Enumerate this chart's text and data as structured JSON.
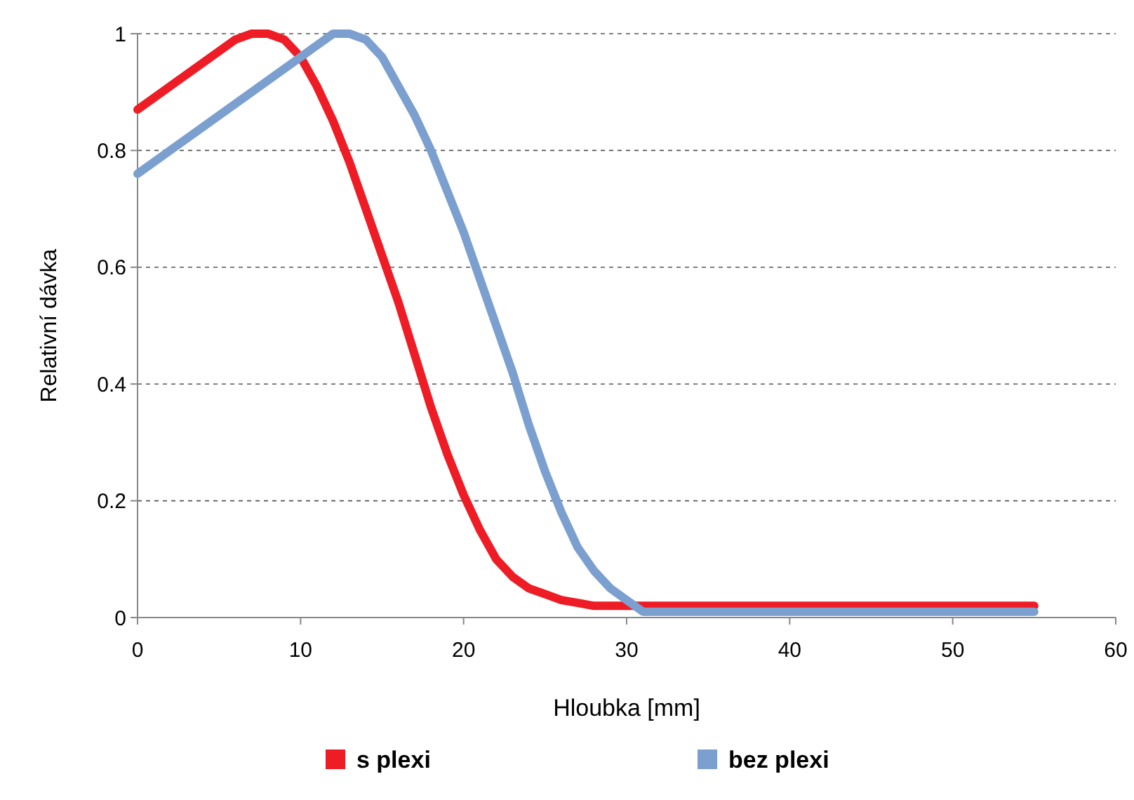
{
  "chart_data": {
    "type": "line",
    "xlabel": "Hloubka [mm]",
    "ylabel": "Relativní dávka",
    "xlim": [
      0,
      60
    ],
    "ylim": [
      0,
      1
    ],
    "xticks": [
      0,
      10,
      20,
      30,
      40,
      50,
      60
    ],
    "yticks": [
      0,
      0.2,
      0.4,
      0.6,
      0.8,
      1
    ],
    "grid": "y",
    "legend": "bottom",
    "marker": "none",
    "line_style": "solid",
    "series": [
      {
        "name": "s plexi",
        "color": "#ee1c25",
        "x": [
          0,
          2,
          4,
          6,
          7,
          8,
          9,
          10,
          11,
          12,
          13,
          14,
          15,
          16,
          17,
          18,
          19,
          20,
          21,
          22,
          23,
          24,
          25,
          26,
          27,
          28,
          29,
          30,
          35,
          40,
          45,
          50,
          55
        ],
        "values": [
          0.87,
          0.91,
          0.95,
          0.99,
          1,
          1,
          0.99,
          0.96,
          0.91,
          0.85,
          0.78,
          0.7,
          0.62,
          0.54,
          0.45,
          0.36,
          0.28,
          0.21,
          0.15,
          0.1,
          0.07,
          0.05,
          0.04,
          0.03,
          0.025,
          0.02,
          0.02,
          0.02,
          0.02,
          0.02,
          0.02,
          0.02,
          0.02
        ]
      },
      {
        "name": "bez plexi",
        "color": "#7b9fcf",
        "x": [
          0,
          2,
          4,
          6,
          8,
          10,
          11,
          12,
          13,
          14,
          15,
          16,
          17,
          18,
          19,
          20,
          21,
          22,
          23,
          24,
          25,
          26,
          27,
          28,
          29,
          30,
          31,
          35,
          40,
          45,
          50,
          55
        ],
        "values": [
          0.76,
          0.8,
          0.84,
          0.88,
          0.92,
          0.96,
          0.98,
          1,
          1,
          0.99,
          0.96,
          0.91,
          0.86,
          0.8,
          0.73,
          0.66,
          0.58,
          0.5,
          0.42,
          0.33,
          0.25,
          0.18,
          0.12,
          0.08,
          0.05,
          0.03,
          0.01,
          0.01,
          0.01,
          0.01,
          0.01,
          0.01
        ]
      }
    ]
  }
}
